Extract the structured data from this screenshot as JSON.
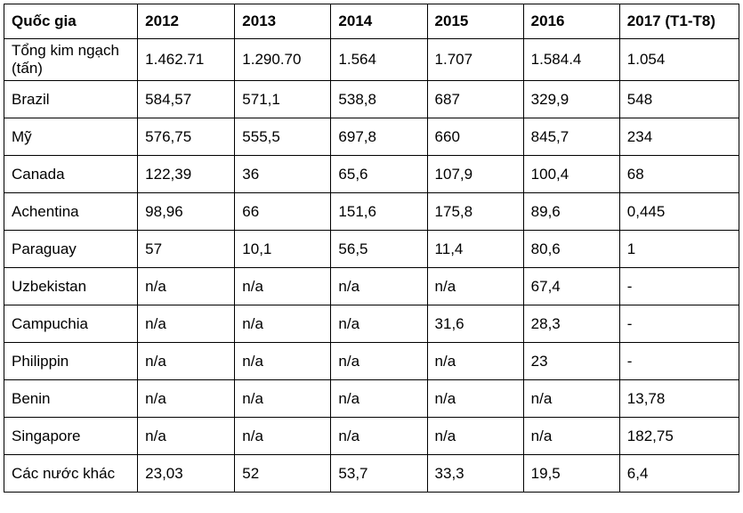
{
  "table": {
    "headers": [
      "Quốc gia",
      "2012",
      "2013",
      "2014",
      "2015",
      "2016",
      "2017 (T1-T8)"
    ],
    "rows": [
      [
        "Tổng kim ngạch (tấn)",
        "1.462.71",
        "1.290.70",
        "1.564",
        "1.707",
        "1.584.4",
        "1.054"
      ],
      [
        "Brazil",
        "584,57",
        "571,1",
        "538,8",
        "687",
        "329,9",
        "548"
      ],
      [
        "Mỹ",
        "576,75",
        "555,5",
        "697,8",
        "660",
        "845,7",
        "234"
      ],
      [
        "Canada",
        "122,39",
        "36",
        "65,6",
        "107,9",
        "100,4",
        "68"
      ],
      [
        "Achentina",
        "98,96",
        "66",
        "151,6",
        "175,8",
        "89,6",
        "0,445"
      ],
      [
        "Paraguay",
        "57",
        "10,1",
        "56,5",
        "11,4",
        "80,6",
        "1"
      ],
      [
        "Uzbekistan",
        "n/a",
        "n/a",
        "n/a",
        "n/a",
        "67,4",
        "-"
      ],
      [
        "Campuchia",
        "n/a",
        "n/a",
        "n/a",
        "31,6",
        "28,3",
        "-"
      ],
      [
        "Philippin",
        "n/a",
        "n/a",
        "n/a",
        "n/a",
        "23",
        "-"
      ],
      [
        "Benin",
        "n/a",
        "n/a",
        "n/a",
        "n/a",
        "n/a",
        "13,78"
      ],
      [
        "Singapore",
        "n/a",
        "n/a",
        "n/a",
        "n/a",
        "n/a",
        "182,75"
      ],
      [
        "Các nước khác",
        "23,03",
        "52",
        "53,7",
        "33,3",
        "19,5",
        "6,4"
      ]
    ]
  }
}
